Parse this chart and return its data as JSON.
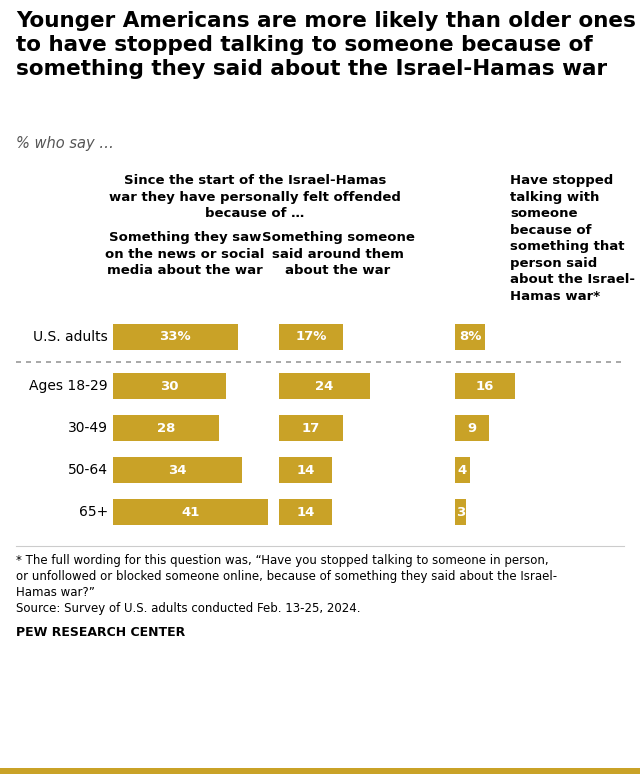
{
  "title": "Younger Americans are more likely than older ones\nto have stopped talking to someone because of\nsomething they said about the Israel-Hamas war",
  "subtitle": "% who say …",
  "categories": [
    "U.S. adults",
    "Ages 18-29",
    "30-49",
    "50-64",
    "65+"
  ],
  "col1_values": [
    33,
    30,
    28,
    34,
    41
  ],
  "col2_values": [
    17,
    24,
    17,
    14,
    14
  ],
  "col3_values": [
    8,
    16,
    9,
    4,
    3
  ],
  "col1_labels": [
    "33%",
    "30",
    "28",
    "34",
    "41"
  ],
  "col2_labels": [
    "17%",
    "24",
    "17",
    "14",
    "14"
  ],
  "col3_labels": [
    "8%",
    "16",
    "9",
    "4",
    "3"
  ],
  "bar_color": "#C9A227",
  "col_header_main": "Since the start of the Israel-Hamas\nwar they have personally felt offended\nbecause of …",
  "col1_header": "Something they saw\non the news or social\nmedia about the war",
  "col2_header": "Something someone\nsaid around them\nabout the war",
  "col3_header": "Have stopped\ntalking with\nsomeone\nbecause of\nsomething that\nperson said\nabout the Israel-\nHamas war*",
  "footnote1": "* The full wording for this question was, “Have you stopped talking to someone in person,",
  "footnote2": "or unfollowed or blocked someone online, because of something they said about the Israel-",
  "footnote3": "Hamas war?”",
  "footnote4": "Source: Survey of U.S. adults conducted Feb. 13-25, 2024.",
  "source_label": "PEW RESEARCH CENTER",
  "bg_color": "#ffffff",
  "text_color": "#000000"
}
